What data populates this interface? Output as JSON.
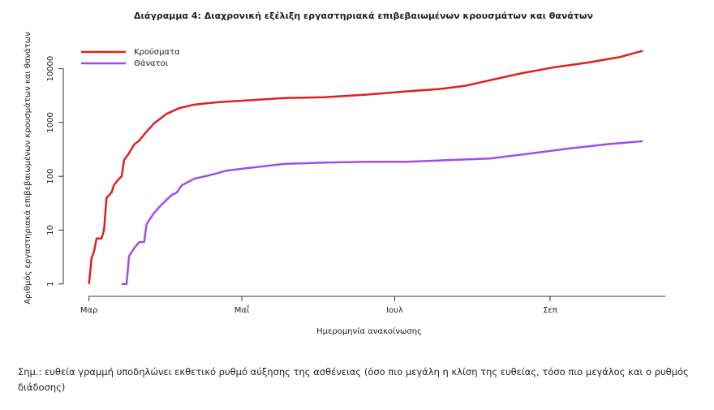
{
  "chart_data": {
    "type": "line",
    "title": "Διάγραμμα 4: Διαχρονική εξέλιξη εργαστηριακά επιβεβαιωμένων κρουσμάτων και θανάτων",
    "x_label": "Ημερομηνία ανακοίνωσης",
    "y_label": "Αριθμός εργαστηριακά επιβεβαιωμένων κρουσμάτων και θανάτων",
    "log_y": true,
    "legend": "top-left",
    "xlim": [
      -8,
      230
    ],
    "xticks": [
      {
        "value": 0,
        "label": "Μαρ"
      },
      {
        "value": 61,
        "label": "Μαΐ"
      },
      {
        "value": 122,
        "label": "Ιουλ"
      },
      {
        "value": 184,
        "label": "Σεπ"
      }
    ],
    "ylim": [
      0.7,
      28000
    ],
    "yticks": [
      1,
      10,
      100,
      1000,
      10000
    ],
    "series": [
      {
        "name": "Κρούσματα",
        "color": "#e0201e",
        "x": [
          0,
          1,
          2,
          3,
          5,
          6,
          7,
          9,
          10,
          12,
          13,
          14,
          16,
          18,
          20,
          22,
          26,
          31,
          36,
          42,
          52,
          62,
          78,
          94,
          111,
          127,
          140,
          150,
          160,
          173,
          186,
          199,
          212,
          221
        ],
        "values": [
          1,
          3,
          4,
          7,
          7,
          10,
          40,
          50,
          70,
          90,
          100,
          200,
          270,
          390,
          460,
          600,
          970,
          1450,
          1850,
          2150,
          2400,
          2560,
          2850,
          2950,
          3300,
          3800,
          4200,
          4800,
          6100,
          8300,
          10700,
          13000,
          16500,
          21500
        ]
      },
      {
        "name": "Θάνατοι",
        "color": "#a04ee8",
        "x": [
          13,
          15,
          16,
          18,
          20,
          22,
          23,
          26,
          29,
          33,
          35,
          37,
          42,
          49,
          55,
          62,
          78,
          94,
          111,
          127,
          143,
          160,
          176,
          192,
          208,
          221
        ],
        "values": [
          1,
          1,
          3.3,
          4.6,
          6,
          6,
          13,
          21,
          30,
          45,
          50,
          68,
          90,
          107,
          128,
          140,
          170,
          180,
          187,
          187,
          200,
          215,
          265,
          330,
          400,
          450
        ]
      }
    ]
  },
  "note": "Σημ.: ευθεία γραμμή υποδηλώνει εκθετικό ρυθμό αύξησης της ασθένειας (όσο πιο μεγάλη η κλίση της ευθείας, τόσο πιο μεγάλος και ο ρυθμός διάδοσης)"
}
